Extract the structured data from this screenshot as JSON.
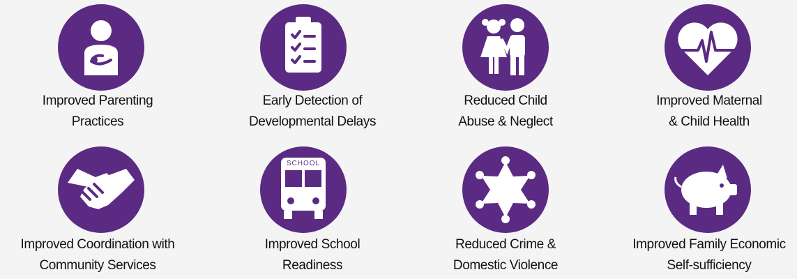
{
  "items": [
    {
      "lines": [
        "Improved Parenting",
        "Practices"
      ]
    },
    {
      "lines": [
        "Early Detection of",
        "Developmental Delays"
      ]
    },
    {
      "lines": [
        "Reduced Child",
        "Abuse & Neglect"
      ]
    },
    {
      "lines": [
        "Improved Maternal",
        "& Child Health"
      ]
    },
    {
      "lines": [
        "Improved Coordination with",
        "Community Services"
      ]
    },
    {
      "lines": [
        "Improved School",
        "Readiness"
      ]
    },
    {
      "lines": [
        "Reduced Crime &",
        "Domestic Violence"
      ]
    },
    {
      "lines": [
        "Improved Family Economic",
        "Self-sufficiency"
      ]
    }
  ],
  "bus_sign": "SCHOOL"
}
